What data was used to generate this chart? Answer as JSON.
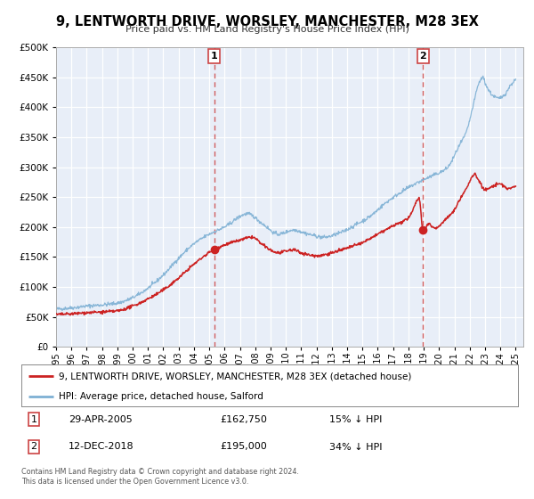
{
  "title": "9, LENTWORTH DRIVE, WORSLEY, MANCHESTER, M28 3EX",
  "subtitle": "Price paid vs. HM Land Registry's House Price Index (HPI)",
  "background_color": "#ffffff",
  "plot_bg_color": "#e8eef8",
  "ylim": [
    0,
    500000
  ],
  "yticks": [
    0,
    50000,
    100000,
    150000,
    200000,
    250000,
    300000,
    350000,
    400000,
    450000,
    500000
  ],
  "xlim_start": 1995.0,
  "xlim_end": 2025.5,
  "xtick_years": [
    1995,
    1996,
    1997,
    1998,
    1999,
    2000,
    2001,
    2002,
    2003,
    2004,
    2005,
    2006,
    2007,
    2008,
    2009,
    2010,
    2011,
    2012,
    2013,
    2014,
    2015,
    2016,
    2017,
    2018,
    2019,
    2020,
    2021,
    2022,
    2023,
    2024,
    2025
  ],
  "hpi_color": "#7eb0d4",
  "price_color": "#cc2222",
  "marker_color": "#cc2222",
  "vline_color": "#cc4444",
  "sale1_x": 2005.33,
  "sale1_y": 162750,
  "sale2_x": 2018.95,
  "sale2_y": 195000,
  "legend_line1": "9, LENTWORTH DRIVE, WORSLEY, MANCHESTER, M28 3EX (detached house)",
  "legend_line2": "HPI: Average price, detached house, Salford",
  "annotation1_label": "1",
  "annotation1_date": "29-APR-2005",
  "annotation1_price": "£162,750",
  "annotation1_hpi": "15% ↓ HPI",
  "annotation2_label": "2",
  "annotation2_date": "12-DEC-2018",
  "annotation2_price": "£195,000",
  "annotation2_hpi": "34% ↓ HPI",
  "footer": "Contains HM Land Registry data © Crown copyright and database right 2024.\nThis data is licensed under the Open Government Licence v3.0."
}
